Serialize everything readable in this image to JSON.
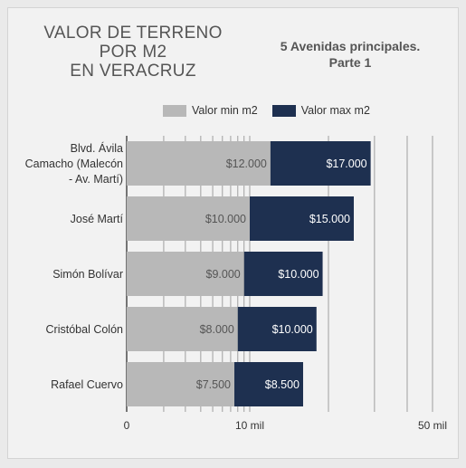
{
  "chart_data": {
    "type": "bar",
    "orientation": "horizontal",
    "stacked": true,
    "title_lines": [
      "VALOR DE TERRENO",
      "POR M2",
      "EN VERACRUZ"
    ],
    "subtitle_lines": [
      "5 Avenidas principales.",
      "Parte 1"
    ],
    "categories": [
      [
        "Blvd. Ávila",
        "Camacho (Malecón",
        "- Av. Martí)"
      ],
      [
        "José Martí"
      ],
      [
        "Simón Bolívar"
      ],
      [
        "Cristóbal Colón"
      ],
      [
        "Rafael Cuervo"
      ]
    ],
    "series": [
      {
        "name": "Valor min m2",
        "color": "#b8b8b8",
        "values": [
          12000,
          10000,
          9000,
          8000,
          7500
        ],
        "labels": [
          "$12.000",
          "$10.000",
          "$9.000",
          "$8.000",
          "$7.500"
        ]
      },
      {
        "name": "Valor max m2",
        "color": "#1e3050",
        "values": [
          17000,
          15000,
          10000,
          10000,
          8500
        ],
        "labels": [
          "$17.000",
          "$15.000",
          "$10.000",
          "$10.000",
          "$8.500"
        ]
      }
    ],
    "x_axis": {
      "scale": "log",
      "min": 1000,
      "max": 50000,
      "ticks": [
        {
          "value": 1000,
          "label": "0"
        },
        {
          "value": 10000,
          "label": "10 mil"
        },
        {
          "value": 50000,
          "label": "50 mil"
        }
      ]
    },
    "grid": true,
    "legend_position": "top"
  }
}
